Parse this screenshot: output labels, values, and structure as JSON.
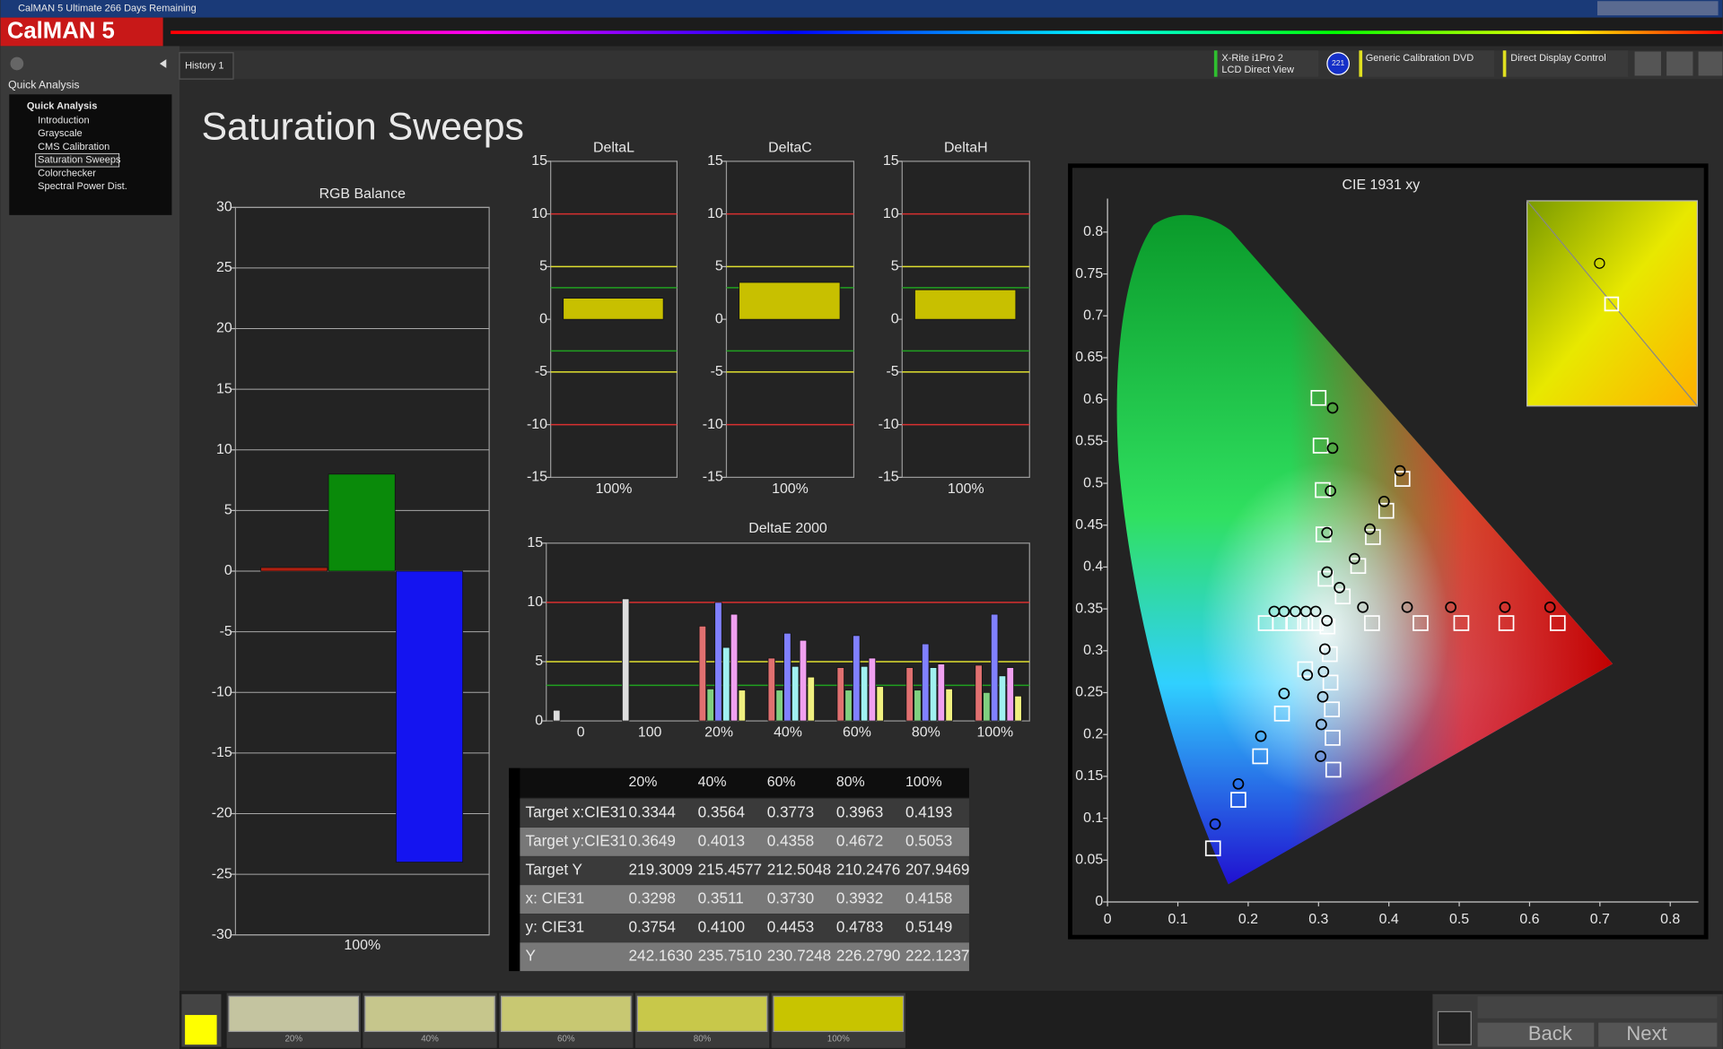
{
  "window": {
    "title": "CalMAN 5 Ultimate 266 Days Remaining",
    "logo": "CalMAN 5"
  },
  "tabs": [
    "History 1"
  ],
  "toolbar": {
    "meter": [
      "X-Rite i1Pro 2",
      "LCD Direct View"
    ],
    "badge": "221",
    "source": "Generic Calibration DVD",
    "display": "Direct Display Control"
  },
  "sidebar": {
    "heading": "Quick Analysis",
    "group": "Quick Analysis",
    "items": [
      "Introduction",
      "Grayscale",
      "CMS Calibration",
      "Saturation Sweeps",
      "Colorchecker",
      "Spectral Power Dist."
    ],
    "selected": 3
  },
  "page_title": "Saturation Sweeps",
  "chart_data": [
    {
      "type": "bar",
      "title": "RGB Balance",
      "categories": [
        "100%"
      ],
      "series": [
        {
          "color": "#b02010",
          "values": [
            0.3
          ]
        },
        {
          "color": "#0a8a0a",
          "values": [
            8
          ]
        },
        {
          "color": "#1414f0",
          "values": [
            -24
          ]
        }
      ],
      "ylim": [
        -30,
        30
      ],
      "yticks": [
        -30,
        -25,
        -20,
        -15,
        -10,
        -5,
        0,
        5,
        10,
        15,
        20,
        25,
        30
      ],
      "grid": true
    },
    {
      "type": "bar",
      "title": "DeltaL",
      "categories": [
        "100%"
      ],
      "values": [
        2.0
      ],
      "color": "#c8c000",
      "ylim": [
        -15,
        15
      ],
      "yticks": [
        -15,
        -10,
        -5,
        0,
        5,
        10,
        15
      ],
      "grid": false,
      "reference_lines": [
        {
          "value": 10,
          "color": "#d83030"
        },
        {
          "value": -10,
          "color": "#d83030"
        },
        {
          "value": 5,
          "color": "#e0e030"
        },
        {
          "value": -5,
          "color": "#e0e030"
        },
        {
          "value": 3,
          "color": "#20a020"
        },
        {
          "value": -3,
          "color": "#20a020"
        }
      ]
    },
    {
      "type": "bar",
      "title": "DeltaC",
      "categories": [
        "100%"
      ],
      "values": [
        3.5
      ],
      "color": "#c8c000",
      "ylim": [
        -15,
        15
      ],
      "yticks": [
        -15,
        -10,
        -5,
        0,
        5,
        10,
        15
      ],
      "grid": false,
      "reference_lines": [
        {
          "value": 10,
          "color": "#d83030"
        },
        {
          "value": -10,
          "color": "#d83030"
        },
        {
          "value": 5,
          "color": "#e0e030"
        },
        {
          "value": -5,
          "color": "#e0e030"
        },
        {
          "value": 3,
          "color": "#20a020"
        },
        {
          "value": -3,
          "color": "#20a020"
        }
      ]
    },
    {
      "type": "bar",
      "title": "DeltaH",
      "categories": [
        "100%"
      ],
      "values": [
        2.8
      ],
      "color": "#c8c000",
      "ylim": [
        -15,
        15
      ],
      "yticks": [
        -15,
        -10,
        -5,
        0,
        5,
        10,
        15
      ],
      "grid": false,
      "reference_lines": [
        {
          "value": 10,
          "color": "#d83030"
        },
        {
          "value": -10,
          "color": "#d83030"
        },
        {
          "value": 5,
          "color": "#e0e030"
        },
        {
          "value": -5,
          "color": "#e0e030"
        },
        {
          "value": 3,
          "color": "#20a020"
        },
        {
          "value": -3,
          "color": "#20a020"
        }
      ]
    },
    {
      "type": "bar",
      "title": "DeltaE 2000",
      "categories": [
        "0",
        "100",
        "20%",
        "40%",
        "60%",
        "80%",
        "100%"
      ],
      "series": [
        {
          "color": "#dddddd",
          "values": [
            0.9,
            10.3,
            null,
            null,
            null,
            null,
            null
          ]
        },
        {
          "color": "#e07070",
          "values": [
            null,
            null,
            8.0,
            5.3,
            4.5,
            4.5,
            4.7
          ]
        },
        {
          "color": "#80d080",
          "values": [
            null,
            null,
            2.7,
            2.6,
            2.6,
            2.6,
            2.4
          ]
        },
        {
          "color": "#8080ff",
          "values": [
            null,
            null,
            10.0,
            7.4,
            7.2,
            6.5,
            9.0
          ]
        },
        {
          "color": "#a0f0f0",
          "values": [
            null,
            null,
            6.2,
            4.6,
            4.6,
            4.5,
            3.8
          ]
        },
        {
          "color": "#f0a0f0",
          "values": [
            null,
            null,
            9.0,
            6.8,
            5.3,
            4.8,
            4.5
          ]
        },
        {
          "color": "#f0f080",
          "values": [
            null,
            null,
            2.6,
            3.7,
            2.9,
            2.7,
            2.1
          ]
        }
      ],
      "ylim": [
        0,
        15
      ],
      "yticks": [
        0,
        5,
        10,
        15
      ],
      "grid": false,
      "reference_lines": [
        {
          "value": 10,
          "color": "#d83030"
        },
        {
          "value": 5,
          "color": "#e0e030"
        },
        {
          "value": 3,
          "color": "#20a020"
        }
      ]
    },
    {
      "type": "scatter",
      "title": "CIE 1931 xy",
      "xlim": [
        0,
        0.84
      ],
      "ylim": [
        0,
        0.84
      ],
      "xticks": [
        0,
        0.1,
        0.2,
        0.3,
        0.4,
        0.5,
        0.6,
        0.7,
        0.8
      ],
      "yticks": [
        0,
        0.05,
        0.1,
        0.15,
        0.2,
        0.25,
        0.3,
        0.35,
        0.4,
        0.45,
        0.5,
        0.55,
        0.6,
        0.65,
        0.7,
        0.75,
        0.8
      ],
      "series": [
        {
          "marker": "square",
          "color": "#ffffff",
          "x": [
            0.376,
            0.445,
            0.503,
            0.567,
            0.64,
            0.31,
            0.307,
            0.306,
            0.303,
            0.3,
            0.281,
            0.248,
            0.217,
            0.186,
            0.15,
            0.296,
            0.281,
            0.264,
            0.245,
            0.225,
            0.316,
            0.317,
            0.319,
            0.32,
            0.321,
            0.3344,
            0.3564,
            0.3773,
            0.3963,
            0.4193,
            0.3127
          ],
          "y": [
            0.333,
            0.333,
            0.333,
            0.333,
            0.333,
            0.386,
            0.439,
            0.492,
            0.545,
            0.602,
            0.278,
            0.225,
            0.174,
            0.122,
            0.064,
            0.333,
            0.333,
            0.333,
            0.333,
            0.333,
            0.296,
            0.262,
            0.23,
            0.196,
            0.158,
            0.3649,
            0.4013,
            0.4358,
            0.4672,
            0.5053,
            0.329
          ]
        },
        {
          "marker": "circle",
          "color": "#000000",
          "x": [
            0.363,
            0.426,
            0.488,
            0.565,
            0.629,
            0.312,
            0.312,
            0.317,
            0.32,
            0.32,
            0.284,
            0.251,
            0.218,
            0.186,
            0.153,
            0.296,
            0.282,
            0.267,
            0.251,
            0.237,
            0.309,
            0.307,
            0.306,
            0.304,
            0.303,
            0.3298,
            0.3511,
            0.373,
            0.3932,
            0.4158,
            0.312
          ],
          "y": [
            0.352,
            0.352,
            0.352,
            0.352,
            0.352,
            0.394,
            0.441,
            0.491,
            0.542,
            0.59,
            0.271,
            0.249,
            0.198,
            0.141,
            0.093,
            0.347,
            0.347,
            0.347,
            0.347,
            0.347,
            0.302,
            0.275,
            0.245,
            0.212,
            0.174,
            0.3754,
            0.41,
            0.4453,
            0.4783,
            0.5149,
            0.336
          ]
        }
      ]
    }
  ],
  "table": {
    "header": [
      "20%",
      "40%",
      "60%",
      "80%",
      "100%"
    ],
    "rows": [
      [
        "Target x:CIE31",
        "0.3344",
        "0.3564",
        "0.3773",
        "0.3963",
        "0.4193"
      ],
      [
        "Target y:CIE31",
        "0.3649",
        "0.4013",
        "0.4358",
        "0.4672",
        "0.5053"
      ],
      [
        "Target Y",
        "219.3009",
        "215.4577",
        "212.5048",
        "210.2476",
        "207.9469"
      ],
      [
        "x: CIE31",
        "0.3298",
        "0.3511",
        "0.3730",
        "0.3932",
        "0.4158"
      ],
      [
        "y: CIE31",
        "0.3754",
        "0.4100",
        "0.4453",
        "0.4783",
        "0.5149"
      ],
      [
        "Y",
        "242.1630",
        "235.7510",
        "230.7248",
        "226.2790",
        "222.1237"
      ]
    ]
  },
  "swatches": {
    "labels": [
      "20%",
      "40%",
      "60%",
      "80%",
      "100%"
    ],
    "colors": [
      "#c4c4a0",
      "#c6c68c",
      "#c8c872",
      "#c8c84a",
      "#c8c400"
    ]
  },
  "nav": {
    "back": "Back",
    "next": "Next"
  }
}
